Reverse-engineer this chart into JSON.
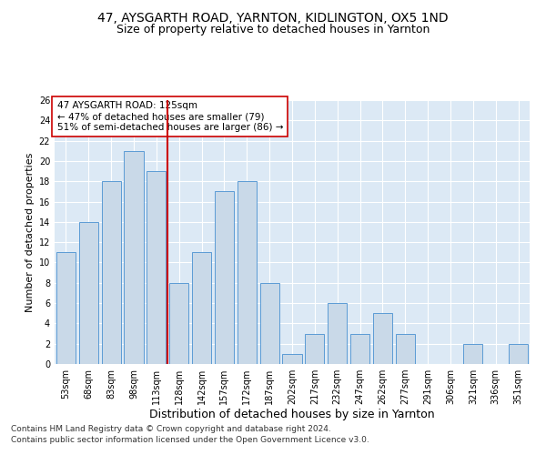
{
  "title1": "47, AYSGARTH ROAD, YARNTON, KIDLINGTON, OX5 1ND",
  "title2": "Size of property relative to detached houses in Yarnton",
  "xlabel": "Distribution of detached houses by size in Yarnton",
  "ylabel": "Number of detached properties",
  "categories": [
    "53sqm",
    "68sqm",
    "83sqm",
    "98sqm",
    "113sqm",
    "128sqm",
    "142sqm",
    "157sqm",
    "172sqm",
    "187sqm",
    "202sqm",
    "217sqm",
    "232sqm",
    "247sqm",
    "262sqm",
    "277sqm",
    "291sqm",
    "306sqm",
    "321sqm",
    "336sqm",
    "351sqm"
  ],
  "values": [
    11,
    14,
    18,
    21,
    19,
    8,
    11,
    17,
    18,
    8,
    1,
    3,
    6,
    3,
    5,
    3,
    0,
    0,
    2,
    0,
    2
  ],
  "bar_color": "#c9d9e8",
  "bar_edge_color": "#5b9bd5",
  "vline_index": 5,
  "vline_color": "#cc0000",
  "annotation_text": "47 AYSGARTH ROAD: 125sqm\n← 47% of detached houses are smaller (79)\n51% of semi-detached houses are larger (86) →",
  "annotation_box_color": "white",
  "annotation_box_edge": "#cc0000",
  "ylim": [
    0,
    26
  ],
  "yticks": [
    0,
    2,
    4,
    6,
    8,
    10,
    12,
    14,
    16,
    18,
    20,
    22,
    24,
    26
  ],
  "footnote1": "Contains HM Land Registry data © Crown copyright and database right 2024.",
  "footnote2": "Contains public sector information licensed under the Open Government Licence v3.0.",
  "bg_color": "#dce9f5",
  "grid_color": "white",
  "title1_fontsize": 10,
  "title2_fontsize": 9,
  "xlabel_fontsize": 9,
  "ylabel_fontsize": 8,
  "tick_fontsize": 7,
  "annotation_fontsize": 7.5,
  "footnote_fontsize": 6.5
}
